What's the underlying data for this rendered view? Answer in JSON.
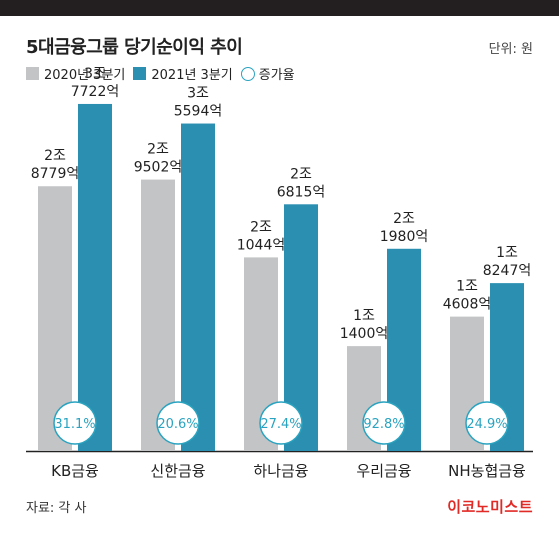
{
  "header": {
    "title": "5대금융그룹 당기순이익 추이",
    "unit": "단위: 원"
  },
  "legend": {
    "items": [
      "2020년 3분기",
      "2021년 3분기",
      "증가율"
    ]
  },
  "footer": {
    "source": "자료: 각 사",
    "brand": "이코노미스트"
  },
  "colors": {
    "series2020": "#c3c4c6",
    "series2021": "#2a8fb0",
    "rateCircle": "#2aa3c0"
  },
  "chart_data": {
    "type": "bar",
    "title": "5대금융그룹 당기순이익 추이",
    "unit": "단위: 원",
    "categories": [
      "KB금융",
      "신한금융",
      "하나금융",
      "우리금융",
      "NH농협금융"
    ],
    "series": [
      {
        "name": "2020년 3분기",
        "values": [
          28779,
          29502,
          21044,
          11400,
          14608
        ],
        "labels": [
          [
            "2조",
            "8779억"
          ],
          [
            "2조",
            "9502억"
          ],
          [
            "2조",
            "1044억"
          ],
          [
            "1조",
            "1400억"
          ],
          [
            "1조",
            "4608억"
          ]
        ]
      },
      {
        "name": "2021년 3분기",
        "values": [
          37722,
          35594,
          26815,
          21980,
          18247
        ],
        "labels": [
          [
            "3조",
            "7722억"
          ],
          [
            "3조",
            "5594억"
          ],
          [
            "2조",
            "6815억"
          ],
          [
            "2조",
            "1980억"
          ],
          [
            "1조",
            "8247억"
          ]
        ]
      }
    ],
    "growth_rate": {
      "name": "증가율",
      "values": [
        "31.1%",
        "20.6%",
        "27.4%",
        "92.8%",
        "24.9%"
      ]
    },
    "ylim": [
      0,
      40000
    ],
    "legend": "top-left",
    "grid": false
  }
}
